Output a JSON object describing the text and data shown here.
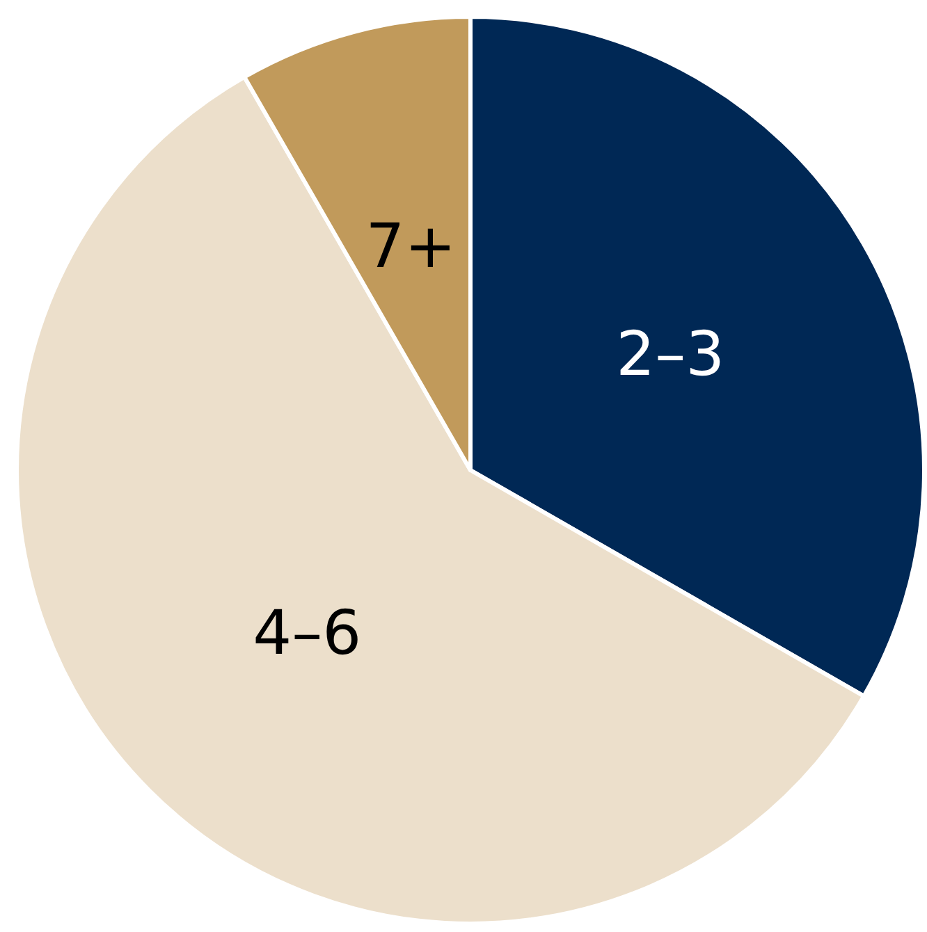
{
  "chart_data": {
    "type": "pie",
    "categories": [
      "2–3",
      "4–6",
      "7+"
    ],
    "values": [
      33.3,
      58.4,
      8.3
    ],
    "colors": [
      "#002855",
      "#ecdfcb",
      "#c19a5b"
    ],
    "legend": false
  }
}
